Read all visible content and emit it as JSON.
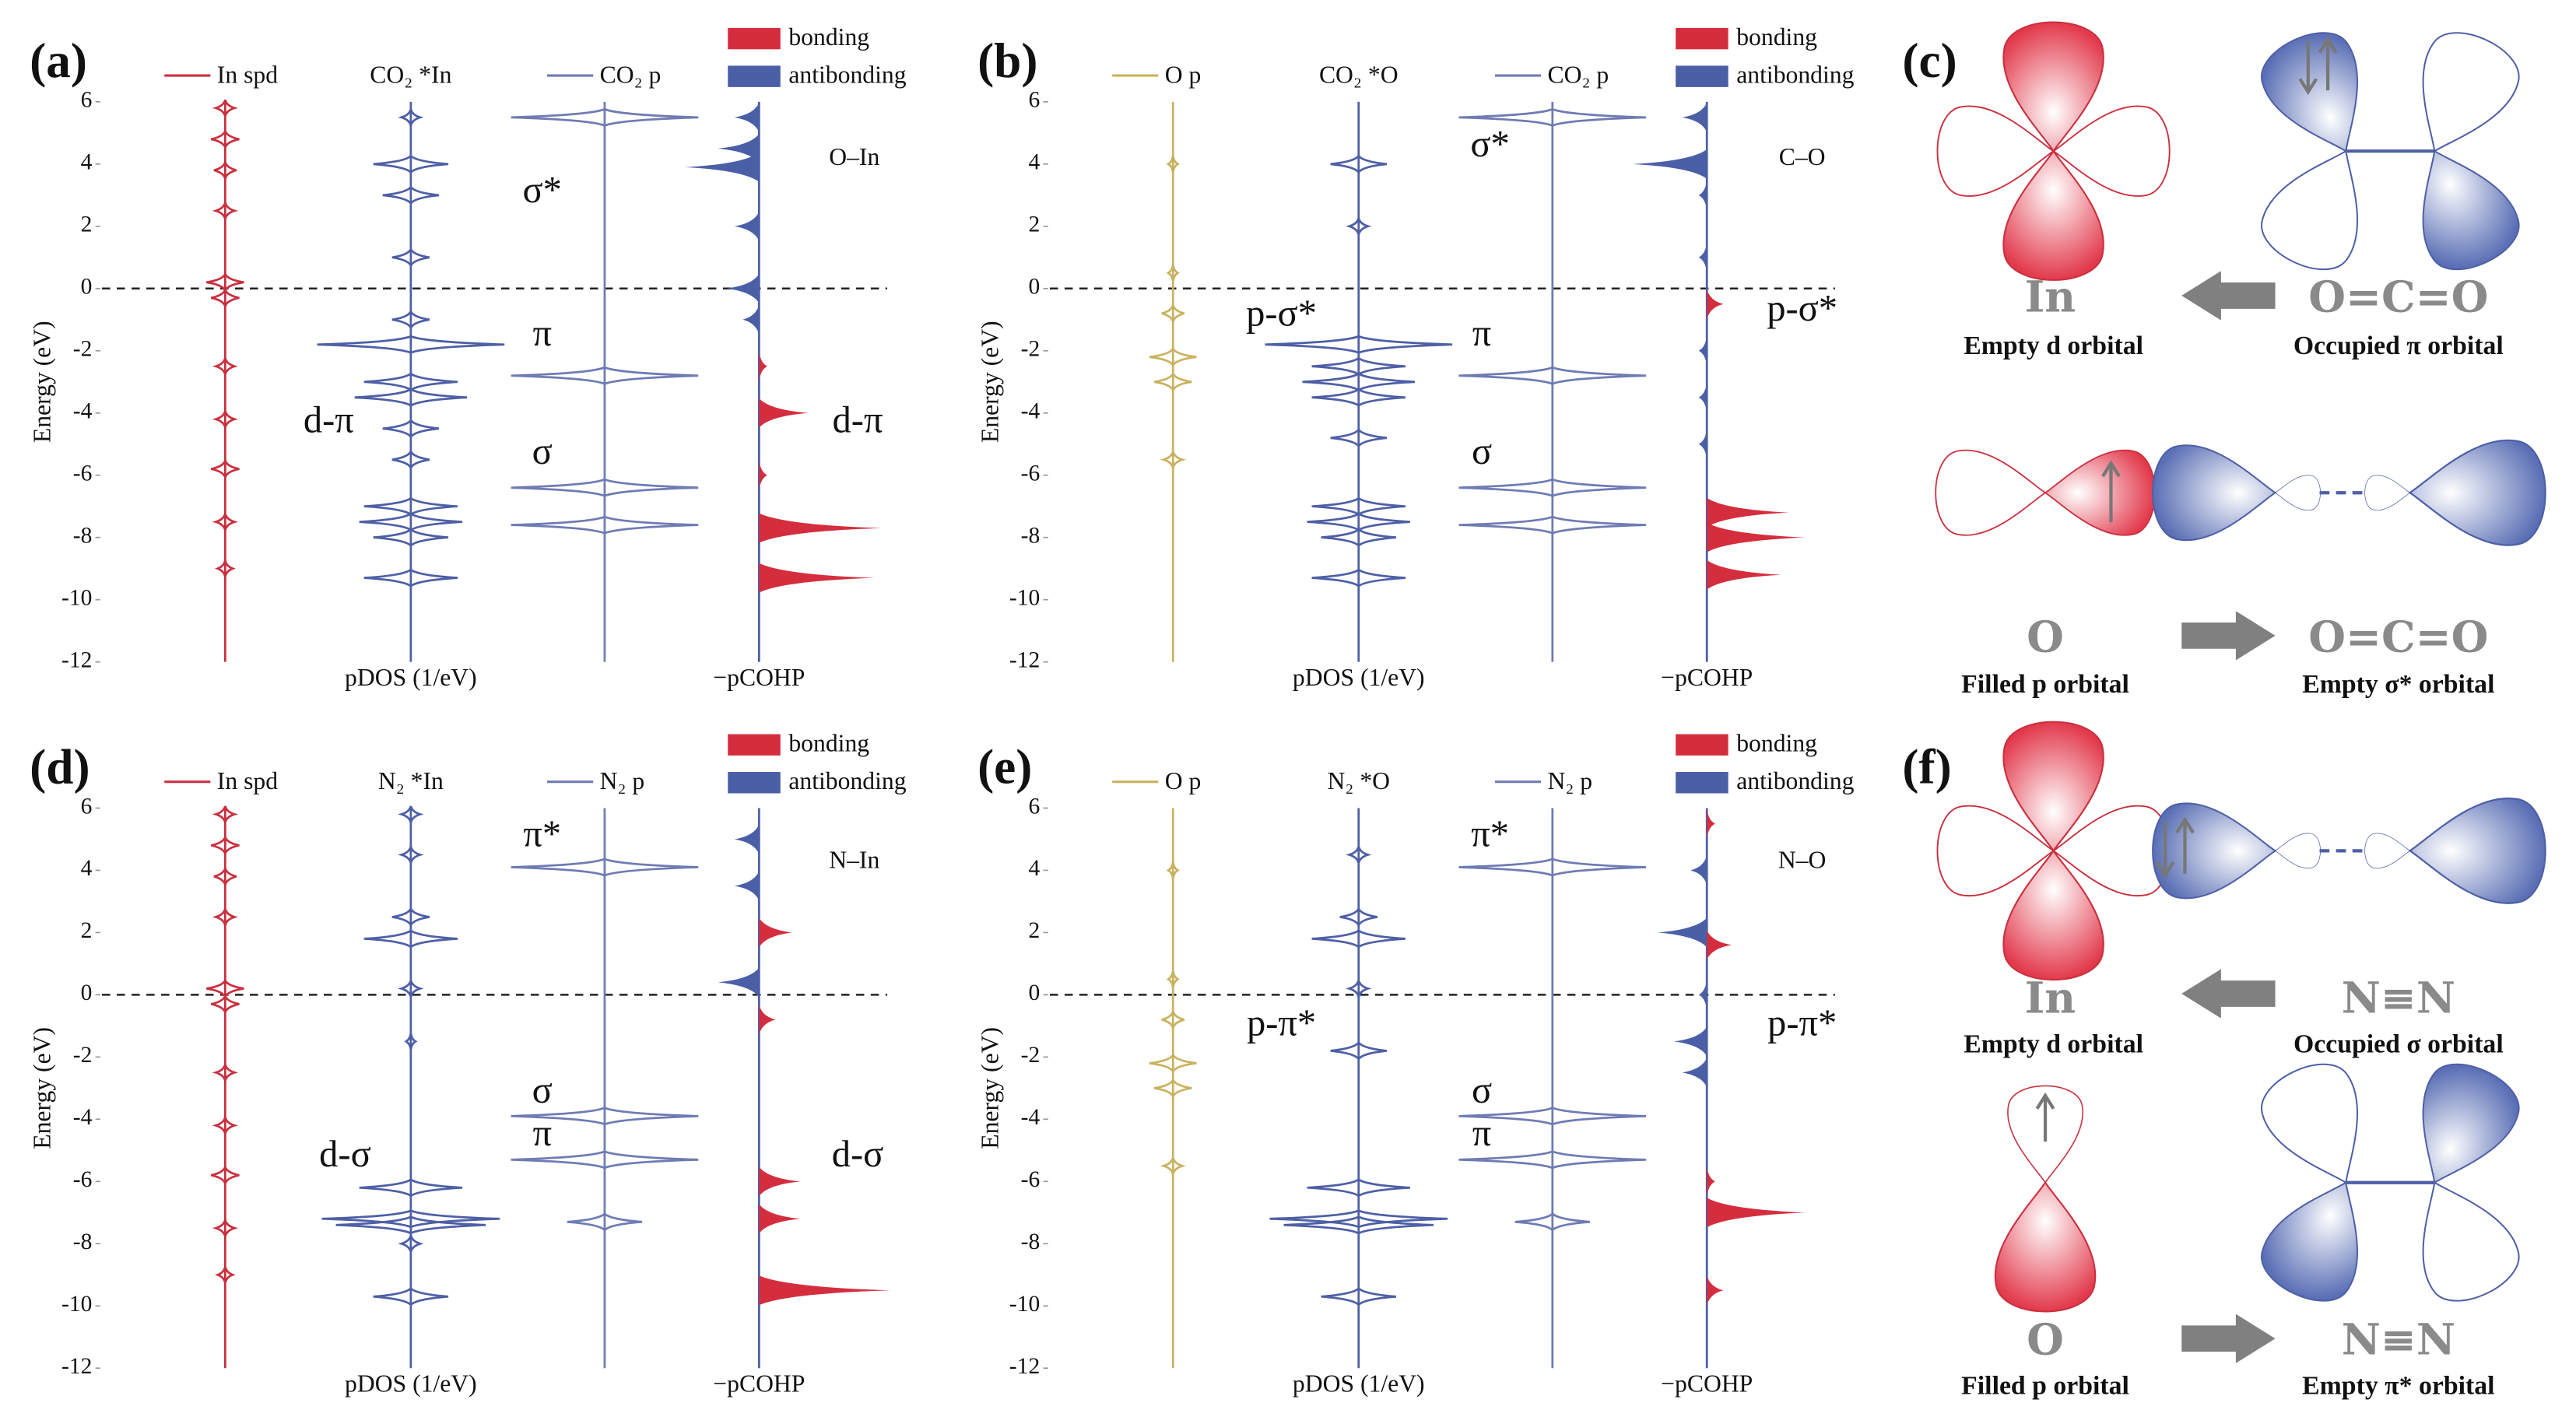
{
  "panels": [
    {
      "label": "(a)",
      "ylabel": "Energy (eV)",
      "ylim": [
        -12,
        6
      ],
      "yticks": [
        6,
        4,
        2,
        0,
        -2,
        -4,
        -6,
        -8,
        -10,
        -12
      ],
      "xlabels": [
        "pDOS (1/eV)",
        "−pCOHP"
      ],
      "legend": [
        {
          "name": "bonding",
          "color": "#d42e3e"
        },
        {
          "name": "antibonding",
          "color": "#4a5fa6"
        }
      ],
      "columns": [
        {
          "name": "In spd",
          "color": "#c9303f",
          "peaks": {
            "energy": [
              5.8,
              4.8,
              3.8,
              2.5,
              0.2,
              -0.3,
              -2.5,
              -4.2,
              -5.8,
              -7.5,
              -9.0
            ],
            "intensity": [
              0.1,
              0.15,
              0.12,
              0.1,
              0.2,
              0.15,
              0.1,
              0.1,
              0.15,
              0.1,
              0.08
            ]
          }
        },
        {
          "name": "CO₂ *In",
          "color": "#4e5fa5",
          "peaks": {
            "energy": [
              5.5,
              4.0,
              3.0,
              1.0,
              -1.0,
              -1.8,
              -3.0,
              -3.5,
              -4.5,
              -5.5,
              -7.0,
              -7.5,
              -8.0,
              -9.3
            ],
            "intensity": [
              0.1,
              0.4,
              0.3,
              0.2,
              0.2,
              1.0,
              0.5,
              0.6,
              0.3,
              0.2,
              0.5,
              0.55,
              0.4,
              0.5
            ]
          }
        },
        {
          "name": "CO₂ p",
          "color": "#6f7bb3",
          "peaks": {
            "energy": [
              5.5,
              -2.8,
              -6.4,
              -7.6
            ],
            "intensity": [
              1,
              1,
              1,
              1
            ]
          }
        }
      ],
      "cohp": {
        "energy": [
          5.5,
          4.5,
          3.9,
          2.0,
          0.0,
          -1.0,
          -2.5,
          -4.0,
          -6.0,
          -7.7,
          -9.3
        ],
        "values": [
          -0.3,
          -0.5,
          -0.9,
          -0.3,
          -0.4,
          -0.2,
          0.1,
          0.6,
          0.1,
          1.5,
          1.4
        ]
      },
      "annotations": [
        "σ*",
        "π",
        "σ",
        "d-π",
        "d-π",
        "O–In"
      ]
    },
    {
      "label": "(b)",
      "ylabel": "Energy (eV)",
      "ylim": [
        -12,
        6
      ],
      "yticks": [
        6,
        4,
        2,
        0,
        -2,
        -4,
        -6,
        -8,
        -10,
        -12
      ],
      "xlabels": [
        "pDOS (1/eV)",
        "−pCOHP"
      ],
      "legend": [
        {
          "name": "bonding",
          "color": "#d42e3e"
        },
        {
          "name": "antibonding",
          "color": "#4a5fa6"
        }
      ],
      "columns": [
        {
          "name": "O p",
          "color": "#c9b25f",
          "peaks": {
            "energy": [
              4.0,
              0.5,
              -0.8,
              -2.2,
              -3.0,
              -5.5
            ],
            "intensity": [
              0.05,
              0.05,
              0.12,
              0.25,
              0.2,
              0.1
            ]
          }
        },
        {
          "name": "CO₂ *O",
          "color": "#4e5fa5",
          "peaks": {
            "energy": [
              4.0,
              2.0,
              -1.8,
              -2.5,
              -3.0,
              -3.5,
              -4.8,
              -7.0,
              -7.5,
              -8.0,
              -9.3
            ],
            "intensity": [
              0.3,
              0.1,
              1.0,
              0.5,
              0.6,
              0.5,
              0.3,
              0.5,
              0.55,
              0.4,
              0.5
            ]
          }
        },
        {
          "name": "CO₂ p",
          "color": "#6f7bb3",
          "peaks": {
            "energy": [
              5.5,
              -2.8,
              -6.4,
              -7.6
            ],
            "intensity": [
              1,
              1,
              1,
              1
            ]
          }
        }
      ],
      "cohp": {
        "energy": [
          5.5,
          4.0,
          3.0,
          1.0,
          -0.5,
          -2.0,
          -3.5,
          -5.0,
          -7.2,
          -8.0,
          -9.2
        ],
        "values": [
          -0.3,
          -0.9,
          -0.1,
          -0.1,
          0.2,
          -0.1,
          -0.1,
          -0.1,
          1.0,
          1.2,
          0.9
        ]
      },
      "annotations": [
        "σ*",
        "π",
        "σ",
        "p-σ*",
        "p-σ*",
        "C–O"
      ]
    },
    {
      "label": "(d)",
      "ylabel": "Energy (eV)",
      "ylim": [
        -12,
        6
      ],
      "yticks": [
        6,
        4,
        2,
        0,
        -2,
        -4,
        -6,
        -8,
        -10,
        -12
      ],
      "xlabels": [
        "pDOS (1/eV)",
        "−pCOHP"
      ],
      "legend": [
        {
          "name": "bonding",
          "color": "#d42e3e"
        },
        {
          "name": "antibonding",
          "color": "#4a5fa6"
        }
      ],
      "columns": [
        {
          "name": "In spd",
          "color": "#c9303f",
          "peaks": {
            "energy": [
              5.8,
              4.8,
              3.8,
              2.5,
              0.2,
              -0.3,
              -2.5,
              -4.2,
              -5.8,
              -7.5,
              -9.0
            ],
            "intensity": [
              0.1,
              0.15,
              0.12,
              0.1,
              0.2,
              0.15,
              0.1,
              0.1,
              0.15,
              0.1,
              0.08
            ]
          }
        },
        {
          "name": "N₂ *In",
          "color": "#4e5fa5",
          "peaks": {
            "energy": [
              5.8,
              4.5,
              2.5,
              1.8,
              0.2,
              -1.5,
              -6.2,
              -7.2,
              -7.4,
              -8.0,
              -9.7
            ],
            "intensity": [
              0.1,
              0.1,
              0.2,
              0.5,
              0.1,
              0.05,
              0.55,
              0.95,
              0.8,
              0.1,
              0.4
            ]
          }
        },
        {
          "name": "N₂ p",
          "color": "#6f7bb3",
          "peaks": {
            "energy": [
              4.1,
              -3.9,
              -5.3,
              -7.3
            ],
            "intensity": [
              1,
              1,
              1,
              0.4
            ]
          }
        }
      ],
      "cohp": {
        "energy": [
          5.0,
          3.5,
          2.0,
          0.4,
          -0.8,
          -6.0,
          -7.2,
          -9.5
        ],
        "values": [
          -0.3,
          -0.3,
          0.4,
          -0.5,
          0.2,
          0.5,
          0.5,
          1.6
        ]
      },
      "annotations": [
        "π*",
        "σ",
        "π",
        "d-σ",
        "d-σ",
        "N–In"
      ]
    },
    {
      "label": "(e)",
      "ylabel": "Energy (eV)",
      "ylim": [
        -12,
        6
      ],
      "yticks": [
        6,
        4,
        2,
        0,
        -2,
        -4,
        -6,
        -8,
        -10,
        -12
      ],
      "xlabels": [
        "pDOS (1/eV)",
        "−pCOHP"
      ],
      "legend": [
        {
          "name": "bonding",
          "color": "#d42e3e"
        },
        {
          "name": "antibonding",
          "color": "#4a5fa6"
        }
      ],
      "columns": [
        {
          "name": "O p",
          "color": "#c9b25f",
          "peaks": {
            "energy": [
              4.0,
              0.5,
              -0.8,
              -2.2,
              -3.0,
              -5.5
            ],
            "intensity": [
              0.05,
              0.05,
              0.12,
              0.25,
              0.2,
              0.1
            ]
          }
        },
        {
          "name": "N₂ *O",
          "color": "#4e5fa5",
          "peaks": {
            "energy": [
              4.5,
              2.5,
              1.8,
              0.2,
              -1.8,
              -6.2,
              -7.2,
              -7.4,
              -9.7
            ],
            "intensity": [
              0.1,
              0.2,
              0.5,
              0.1,
              0.3,
              0.55,
              0.95,
              0.8,
              0.4
            ]
          }
        },
        {
          "name": "N₂ p",
          "color": "#6f7bb3",
          "peaks": {
            "energy": [
              4.1,
              -3.9,
              -5.3,
              -7.3
            ],
            "intensity": [
              1,
              1,
              1,
              0.4
            ]
          }
        }
      ],
      "cohp": {
        "energy": [
          5.5,
          4.0,
          2.0,
          1.6,
          0.0,
          -1.5,
          -2.5,
          -6.0,
          -7.0,
          -9.5
        ],
        "values": [
          0.1,
          -0.2,
          -0.6,
          0.3,
          -0.1,
          -0.4,
          -0.3,
          0.1,
          1.2,
          0.2
        ]
      },
      "annotations": [
        "π*",
        "σ",
        "π",
        "p-π*",
        "p-π*",
        "N–O"
      ]
    }
  ],
  "diagrams": [
    {
      "label": "(c)",
      "rows": [
        {
          "left_atom": "In",
          "left_caption": "Empty d orbital",
          "right_atom": "O=C=O",
          "right_caption": "Occupied π orbital"
        },
        {
          "left_atom": "O",
          "left_caption": "Filled p orbital",
          "right_atom": "O=C=O",
          "right_caption": "Empty σ* orbital"
        }
      ]
    },
    {
      "label": "(f)",
      "rows": [
        {
          "left_atom": "In",
          "left_caption": "Empty d orbital",
          "right_atom": "N≡N",
          "right_caption": "Occupied σ orbital"
        },
        {
          "left_atom": "O",
          "left_caption": "Filled p orbital",
          "right_atom": "N≡N",
          "right_caption": "Empty π* orbital"
        }
      ]
    }
  ]
}
